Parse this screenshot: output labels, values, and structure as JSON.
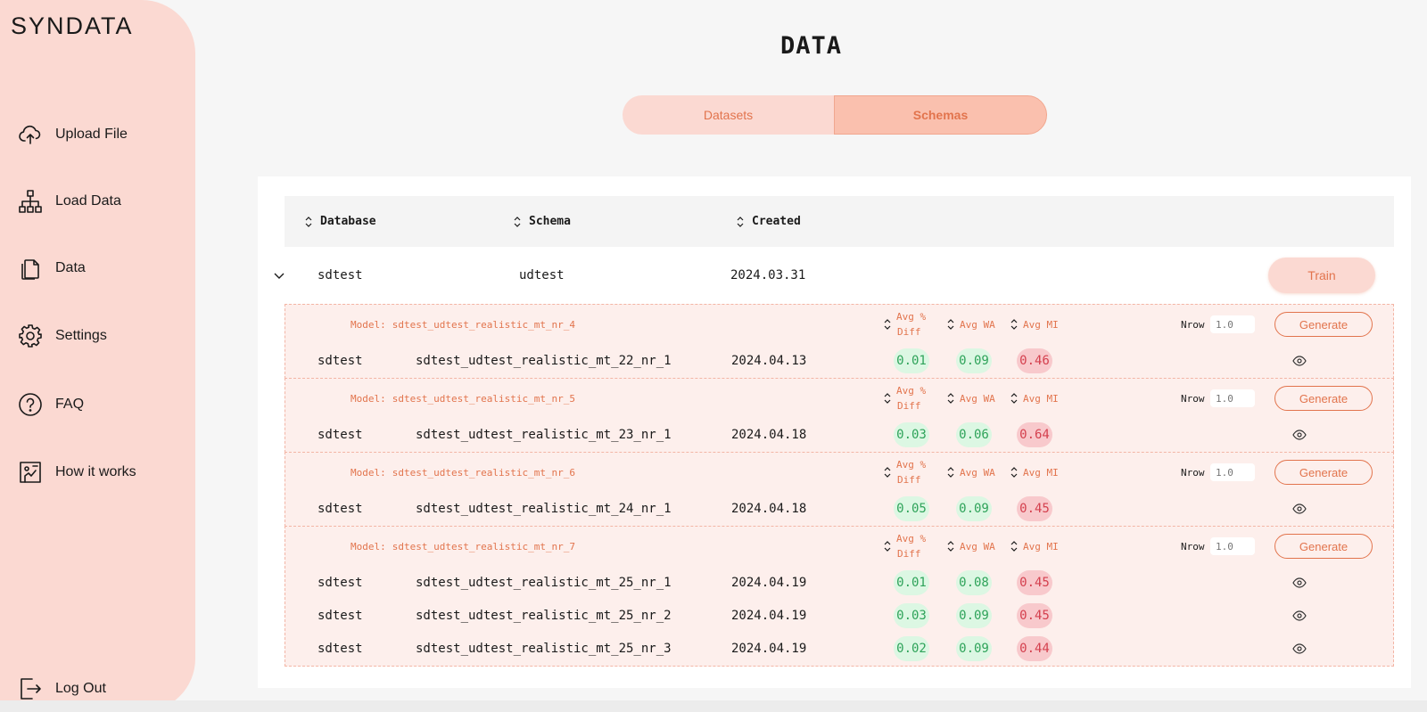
{
  "app": {
    "logo": "SYNDATA"
  },
  "sidebar": {
    "items": [
      {
        "label": "Upload File",
        "icon": "cloud-upload-icon"
      },
      {
        "label": "Load Data",
        "icon": "hierarchy-icon"
      },
      {
        "label": "Data",
        "icon": "files-icon"
      },
      {
        "label": "Settings",
        "icon": "gear-icon"
      },
      {
        "label": "FAQ",
        "icon": "question-icon"
      },
      {
        "label": "How it works",
        "icon": "presentation-icon"
      }
    ],
    "logout": {
      "label": "Log Out",
      "icon": "logout-icon"
    }
  },
  "page": {
    "title": "DATA"
  },
  "tabs": [
    {
      "label": "Datasets",
      "active": false
    },
    {
      "label": "Schemas",
      "active": true
    }
  ],
  "table": {
    "headers": {
      "database": "Database",
      "schema": "Schema",
      "created": "Created"
    },
    "row": {
      "database": "sdtest",
      "schema": "udtest",
      "created": "2024.03.31",
      "train_label": "Train"
    },
    "metric_headers": {
      "diff_line1": "Avg %",
      "diff_line2": "Diff",
      "wa": "Avg WA",
      "mi": "Avg MI"
    },
    "nrow_label": "Nrow",
    "nrow_placeholder": "1.0",
    "generate_label": "Generate",
    "model_prefix": "Model:",
    "models": [
      {
        "name": "sdtest_udtest_realistic_mt_nr_4",
        "rows": [
          {
            "db": "sdtest",
            "schema": "sdtest_udtest_realistic_mt_22_nr_1",
            "date": "2024.04.13",
            "diff": "0.01",
            "wa": "0.09",
            "mi": "0.46"
          }
        ]
      },
      {
        "name": "sdtest_udtest_realistic_mt_nr_5",
        "rows": [
          {
            "db": "sdtest",
            "schema": "sdtest_udtest_realistic_mt_23_nr_1",
            "date": "2024.04.18",
            "diff": "0.03",
            "wa": "0.06",
            "mi": "0.64"
          }
        ]
      },
      {
        "name": "sdtest_udtest_realistic_mt_nr_6",
        "rows": [
          {
            "db": "sdtest",
            "schema": "sdtest_udtest_realistic_mt_24_nr_1",
            "date": "2024.04.18",
            "diff": "0.05",
            "wa": "0.09",
            "mi": "0.45"
          }
        ]
      },
      {
        "name": "sdtest_udtest_realistic_mt_nr_7",
        "rows": [
          {
            "db": "sdtest",
            "schema": "sdtest_udtest_realistic_mt_25_nr_1",
            "date": "2024.04.19",
            "diff": "0.01",
            "wa": "0.08",
            "mi": "0.45"
          },
          {
            "db": "sdtest",
            "schema": "sdtest_udtest_realistic_mt_25_nr_2",
            "date": "2024.04.19",
            "diff": "0.03",
            "wa": "0.09",
            "mi": "0.45"
          },
          {
            "db": "sdtest",
            "schema": "sdtest_udtest_realistic_mt_25_nr_3",
            "date": "2024.04.19",
            "diff": "0.02",
            "wa": "0.09",
            "mi": "0.44"
          }
        ]
      }
    ]
  },
  "colors": {
    "accent": "#e2744d",
    "sidebar": "#fbd9d2",
    "good": "#2fa35a",
    "bad": "#d4404e"
  }
}
